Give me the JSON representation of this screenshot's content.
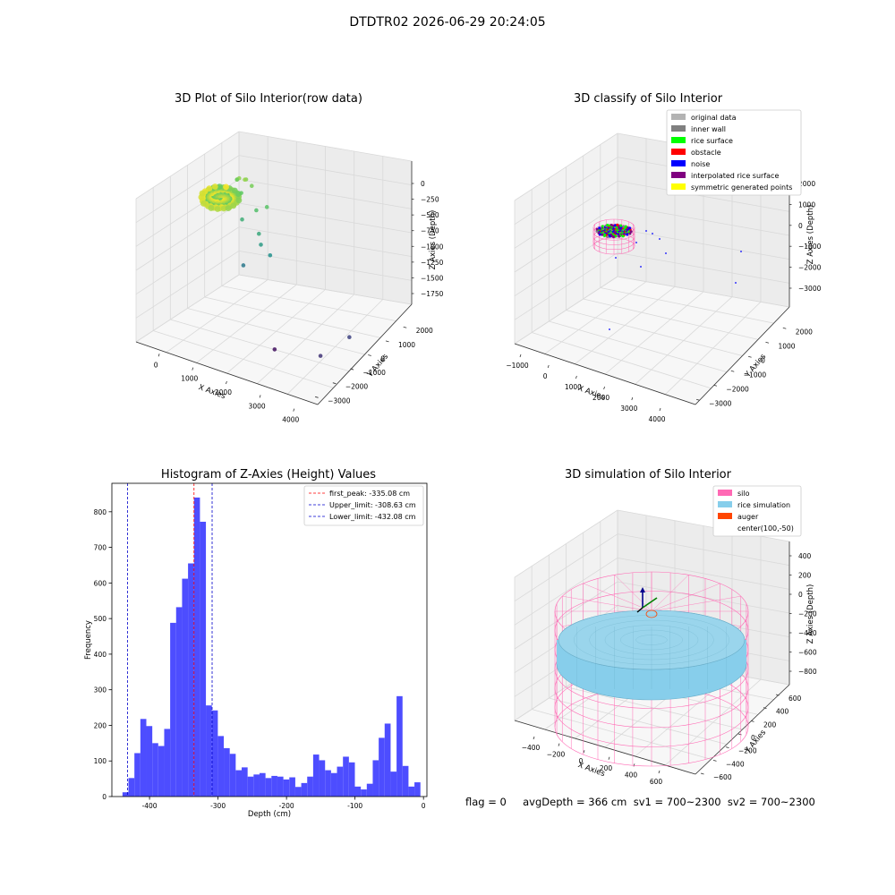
{
  "suptitle": "DTDTR02 2026-06-29 20:24:05",
  "footer": "flag = 0     avgDepth = 366 cm  sv1 = 700~2300  sv2 = 700~2300",
  "colors": {
    "histogram_bar": "#4d4dff",
    "first_peak_line": "#ff0000",
    "limit_lines": "#0000cc",
    "silo": "#ff69b4",
    "rice": "#87ceeb",
    "auger": "#ff4500"
  },
  "chart_data": [
    {
      "type": "scatter",
      "title": "3D Plot of Silo Interior(row data)",
      "xlabel": "X Axies",
      "ylabel": "Y Axies",
      "zlabel": "Z Axies (Depth)",
      "x_ticks": [
        "0",
        "1000",
        "2000",
        "3000",
        "4000"
      ],
      "y_ticks": [
        "2000",
        "1000",
        "0",
        "−1000",
        "−2000",
        "−3000"
      ],
      "z_ticks": [
        "0",
        "−250",
        "−500",
        "−750",
        "−1000",
        "−1250",
        "−1500",
        "−1750"
      ],
      "xlim": [
        -700,
        4300
      ],
      "ylim": [
        -3500,
        2700
      ],
      "zlim": [
        -1900,
        100
      ],
      "colormap": "viridis",
      "points": [
        {
          "x": -200,
          "y": 1500,
          "z": -300
        },
        {
          "x": -100,
          "y": 1400,
          "z": -250
        },
        {
          "x": 0,
          "y": 1600,
          "z": -280
        },
        {
          "x": 100,
          "y": 1300,
          "z": -220
        },
        {
          "x": 200,
          "y": 1500,
          "z": -320
        },
        {
          "x": -300,
          "y": 1700,
          "z": -350
        },
        {
          "x": 50,
          "y": 1200,
          "z": -400
        },
        {
          "x": 800,
          "y": 1100,
          "z": -450
        },
        {
          "x": 600,
          "y": 900,
          "z": -500
        },
        {
          "x": 300,
          "y": 700,
          "z": -650
        },
        {
          "x": 900,
          "y": 400,
          "z": -700
        },
        {
          "x": 1000,
          "y": 300,
          "z": -820
        },
        {
          "x": 1300,
          "y": 200,
          "z": -900
        },
        {
          "x": 700,
          "y": -100,
          "z": -1100
        },
        {
          "x": 3800,
          "y": -500,
          "z": -1500
        },
        {
          "x": 3600,
          "y": -1800,
          "z": -1600
        },
        {
          "x": 2200,
          "y": -1500,
          "z": -1800
        }
      ]
    },
    {
      "type": "scatter",
      "title": "3D classify of Silo Interior",
      "xlabel": "X Axies",
      "ylabel": "Y Axies",
      "zlabel": "Z Axies (Depth)",
      "x_ticks": [
        "−1000",
        "0",
        "1000",
        "2000",
        "3000",
        "4000"
      ],
      "y_ticks": [
        "2000",
        "1000",
        "0",
        "−1000",
        "−2000",
        "−3000"
      ],
      "z_ticks": [
        "2000",
        "1000",
        "0",
        "−1000",
        "−2000",
        "−3000"
      ],
      "legend": [
        {
          "label": "original data",
          "color": "#b3b3b3"
        },
        {
          "label": "inner wall",
          "color": "#808080"
        },
        {
          "label": "rice surface",
          "color": "#00ff00"
        },
        {
          "label": "obstacle",
          "color": "#ff0000"
        },
        {
          "label": "noise",
          "color": "#0000ff"
        },
        {
          "label": "interpolated rice surface",
          "color": "#800080"
        },
        {
          "label": "symmetric generated points",
          "color": "#ffff00"
        }
      ],
      "legend_location": "top-right"
    },
    {
      "type": "bar",
      "title": "Histogram of Z-Axies (Height) Values",
      "xlabel": "Depth (cm)",
      "ylabel": "Frequency",
      "xlim": [
        -455,
        5
      ],
      "ylim": [
        0,
        880
      ],
      "x_ticks": [
        -400,
        -300,
        -200,
        -100,
        0
      ],
      "y_ticks": [
        0,
        100,
        200,
        300,
        400,
        500,
        600,
        700,
        800
      ],
      "bin_width": 8.7,
      "bin_start": -439.5,
      "values": [
        12,
        52,
        122,
        218,
        198,
        150,
        142,
        190,
        488,
        532,
        612,
        655,
        840,
        772,
        256,
        242,
        170,
        136,
        120,
        74,
        82,
        56,
        62,
        66,
        52,
        58,
        56,
        48,
        54,
        27,
        38,
        56,
        118,
        102,
        74,
        66,
        84,
        112,
        96,
        28,
        20,
        36,
        102,
        165,
        205,
        70,
        282,
        86,
        28,
        40
      ],
      "reference_lines": [
        {
          "label": "first_peak: -335.08 cm",
          "x": -335.08,
          "color": "#ff0000"
        },
        {
          "label": "Upper_limit: -308.63 cm",
          "x": -308.63,
          "color": "#0000cc"
        },
        {
          "label": "Lower_limit: -432.08 cm",
          "x": -432.08,
          "color": "#0000cc"
        }
      ],
      "legend_location": "top-right"
    },
    {
      "type": "other",
      "title": "3D simulation of Silo Interior",
      "xlabel": "X Axies",
      "ylabel": "Y Axies",
      "zlabel": "Z Axies (Depth)",
      "x_ticks": [
        "−400",
        "−200",
        "0",
        "200",
        "400",
        "600"
      ],
      "y_ticks": [
        "600",
        "400",
        "200",
        "0",
        "−200",
        "−400",
        "−600"
      ],
      "z_ticks": [
        "400",
        "200",
        "0",
        "−200",
        "−400",
        "−600",
        "−800"
      ],
      "legend": [
        {
          "label": "silo",
          "color": "#ff69b4"
        },
        {
          "label": "rice simulation",
          "color": "#87ceeb"
        },
        {
          "label": "auger",
          "color": "#ff4500"
        },
        {
          "label": "center(100,-50)",
          "color": ""
        }
      ],
      "legend_location": "top-right"
    }
  ]
}
